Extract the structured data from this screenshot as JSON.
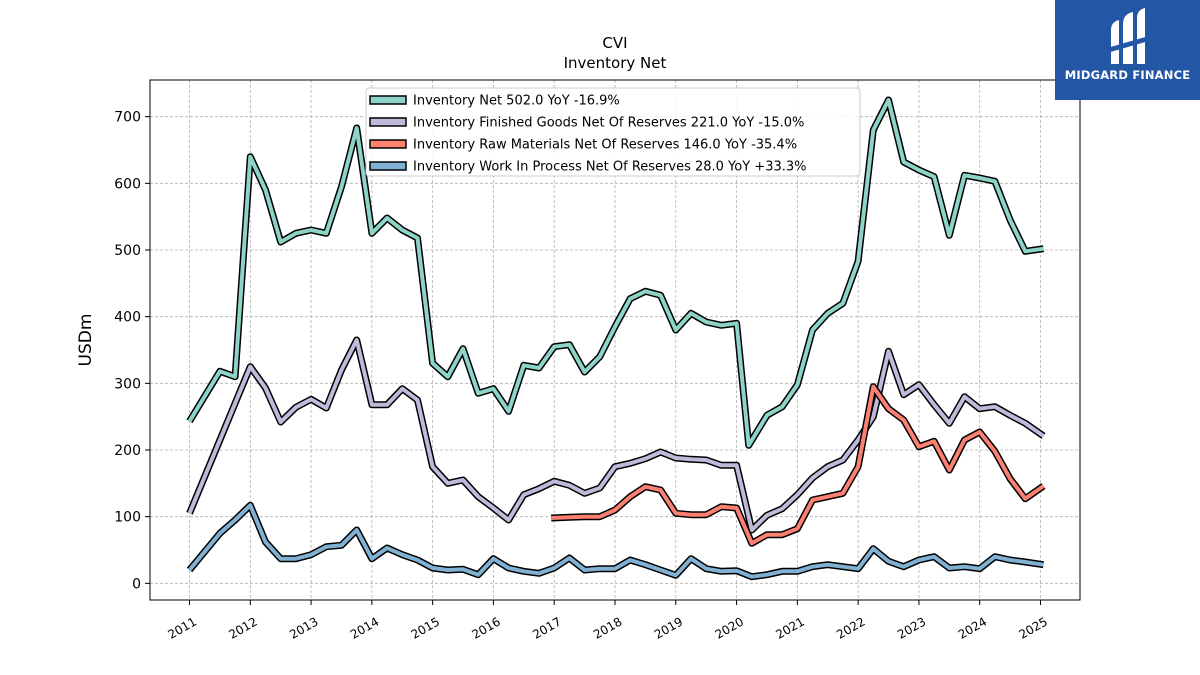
{
  "chart_data": {
    "type": "line",
    "title": "CVI",
    "subtitle": "Inventory Net",
    "ylabel": "USDm",
    "xlabel": "",
    "ylim": [
      -25,
      755
    ],
    "xlim": [
      2010.35,
      2025.65
    ],
    "yticks": [
      0,
      100,
      200,
      300,
      400,
      500,
      600,
      700
    ],
    "xticks": [
      "2011",
      "2012",
      "2013",
      "2014",
      "2015",
      "2016",
      "2017",
      "2018",
      "2019",
      "2020",
      "2021",
      "2022",
      "2023",
      "2024",
      "2025"
    ],
    "grid": true,
    "legend_position": "top-center",
    "series": [
      {
        "name": "Inventory Net  502.0 YoY -16.9%",
        "color": "#8dd3c7",
        "x": [
          2011.0,
          2011.5,
          2011.75,
          2012.0,
          2012.25,
          2012.5,
          2012.75,
          2013.0,
          2013.25,
          2013.5,
          2013.75,
          2014.0,
          2014.25,
          2014.5,
          2014.75,
          2015.0,
          2015.25,
          2015.5,
          2015.75,
          2016.0,
          2016.25,
          2016.5,
          2016.75,
          2017.0,
          2017.25,
          2017.5,
          2017.75,
          2018.0,
          2018.25,
          2018.5,
          2018.75,
          2019.0,
          2019.25,
          2019.5,
          2019.75,
          2020.0,
          2020.2,
          2020.5,
          2020.75,
          2021.0,
          2021.25,
          2021.5,
          2021.75,
          2022.0,
          2022.25,
          2022.5,
          2022.75,
          2023.0,
          2023.25,
          2023.5,
          2023.75,
          2024.0,
          2024.25,
          2024.5,
          2024.75,
          2025.05
        ],
        "values": [
          243,
          318,
          310,
          640,
          590,
          512,
          525,
          530,
          525,
          595,
          683,
          525,
          548,
          530,
          518,
          330,
          310,
          352,
          285,
          292,
          258,
          327,
          323,
          355,
          358,
          317,
          340,
          385,
          427,
          438,
          432,
          380,
          405,
          392,
          387,
          390,
          207,
          252,
          265,
          298,
          380,
          405,
          420,
          483,
          680,
          725,
          632,
          620,
          610,
          522,
          612,
          608,
          603,
          545,
          498,
          502
        ]
      },
      {
        "name": "Inventory Finished Goods Net Of Reserves  221.0 YoY -15.0%",
        "color": "#bebada",
        "x": [
          2011.0,
          2011.5,
          2011.75,
          2012.0,
          2012.25,
          2012.5,
          2012.75,
          2013.0,
          2013.25,
          2013.5,
          2013.75,
          2014.0,
          2014.25,
          2014.5,
          2014.75,
          2015.0,
          2015.25,
          2015.5,
          2015.75,
          2016.0,
          2016.25,
          2016.5,
          2016.75,
          2017.0,
          2017.25,
          2017.5,
          2017.75,
          2018.0,
          2018.25,
          2018.5,
          2018.75,
          2019.0,
          2019.25,
          2019.5,
          2019.75,
          2020.0,
          2020.25,
          2020.5,
          2020.75,
          2021.0,
          2021.25,
          2021.5,
          2021.75,
          2022.0,
          2022.25,
          2022.5,
          2022.75,
          2023.0,
          2023.25,
          2023.5,
          2023.75,
          2024.0,
          2024.25,
          2024.5,
          2024.75,
          2025.05
        ],
        "values": [
          105,
          215,
          270,
          325,
          293,
          242,
          264,
          276,
          263,
          320,
          365,
          268,
          268,
          292,
          275,
          175,
          150,
          155,
          130,
          113,
          95,
          133,
          142,
          153,
          147,
          135,
          143,
          175,
          180,
          187,
          197,
          188,
          186,
          185,
          177,
          177,
          80,
          102,
          112,
          133,
          158,
          175,
          185,
          215,
          250,
          348,
          283,
          298,
          268,
          240,
          280,
          262,
          265,
          252,
          240,
          221
        ]
      },
      {
        "name": "Inventory Raw Materials Net Of Reserves  146.0 YoY -35.4%",
        "color": "#fb8072",
        "x": [
          2016.95,
          2017.25,
          2017.5,
          2017.75,
          2018.0,
          2018.25,
          2018.5,
          2018.75,
          2019.0,
          2019.25,
          2019.5,
          2019.75,
          2020.0,
          2020.25,
          2020.5,
          2020.75,
          2021.0,
          2021.25,
          2021.5,
          2021.75,
          2022.0,
          2022.25,
          2022.5,
          2022.75,
          2023.0,
          2023.25,
          2023.5,
          2023.75,
          2024.0,
          2024.25,
          2024.5,
          2024.75,
          2025.05
        ],
        "values": [
          98,
          99,
          100,
          100,
          110,
          130,
          145,
          140,
          105,
          103,
          103,
          115,
          113,
          60,
          73,
          73,
          82,
          125,
          130,
          135,
          175,
          295,
          262,
          245,
          205,
          213,
          170,
          215,
          227,
          198,
          157,
          127,
          146
        ]
      },
      {
        "name": "Inventory Work In Process Net Of Reserves  28.0 YoY +33.3%",
        "color": "#80b1d3",
        "x": [
          2011.0,
          2011.5,
          2011.75,
          2012.0,
          2012.25,
          2012.5,
          2012.75,
          2013.0,
          2013.25,
          2013.5,
          2013.75,
          2014.0,
          2014.25,
          2014.5,
          2014.75,
          2015.0,
          2015.25,
          2015.5,
          2015.75,
          2016.0,
          2016.25,
          2016.5,
          2016.75,
          2017.0,
          2017.25,
          2017.5,
          2017.75,
          2018.0,
          2018.25,
          2018.5,
          2018.75,
          2019.0,
          2019.25,
          2019.5,
          2019.75,
          2020.0,
          2020.25,
          2020.5,
          2020.75,
          2021.0,
          2021.25,
          2021.5,
          2021.75,
          2022.0,
          2022.25,
          2022.5,
          2022.75,
          2023.0,
          2023.25,
          2023.5,
          2023.75,
          2024.0,
          2024.25,
          2024.5,
          2024.75,
          2025.05
        ],
        "values": [
          20,
          75,
          95,
          117,
          62,
          37,
          37,
          43,
          55,
          57,
          80,
          37,
          53,
          43,
          35,
          23,
          20,
          21,
          13,
          37,
          23,
          18,
          15,
          23,
          38,
          20,
          22,
          22,
          35,
          28,
          20,
          12,
          37,
          22,
          18,
          19,
          10,
          13,
          18,
          18,
          25,
          28,
          25,
          22,
          52,
          33,
          25,
          35,
          40,
          23,
          25,
          22,
          40,
          35,
          32,
          28
        ]
      }
    ]
  },
  "brand": {
    "name": "MIDGARD FINANCE",
    "color": "#2456a6",
    "icon": "midgard-logo-icon"
  }
}
